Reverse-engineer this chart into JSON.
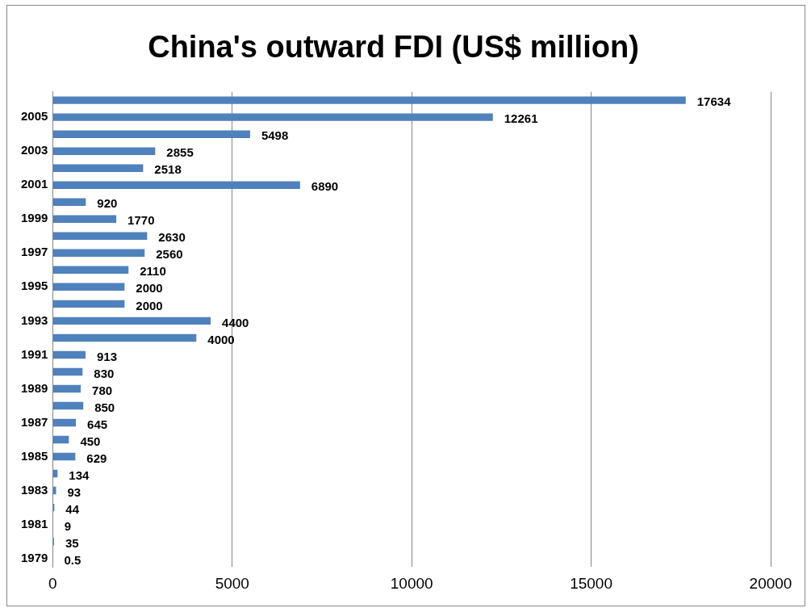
{
  "chart_data": {
    "type": "bar",
    "orientation": "horizontal",
    "title": "China's outward FDI (US$ million)",
    "categories": [
      null,
      "2005",
      null,
      "2003",
      null,
      "2001",
      null,
      "1999",
      null,
      "1997",
      null,
      "1995",
      null,
      "1993",
      null,
      "1991",
      null,
      "1989",
      null,
      "1987",
      null,
      "1985",
      null,
      "1983",
      null,
      "1981",
      null,
      "1979"
    ],
    "values": [
      17634,
      12261,
      5498,
      2855,
      2518,
      6890,
      920,
      1770,
      2630,
      2560,
      2110,
      2000,
      2000,
      4400,
      4000,
      913,
      830,
      780,
      850,
      645,
      450,
      629,
      134,
      93,
      44,
      9,
      35,
      0.5
    ],
    "color": "#4f81bd",
    "xlim": [
      0,
      20000
    ],
    "xticks": [
      0,
      5000,
      10000,
      15000,
      20000
    ],
    "grid": "x",
    "data_labels": true,
    "legend": false
  }
}
